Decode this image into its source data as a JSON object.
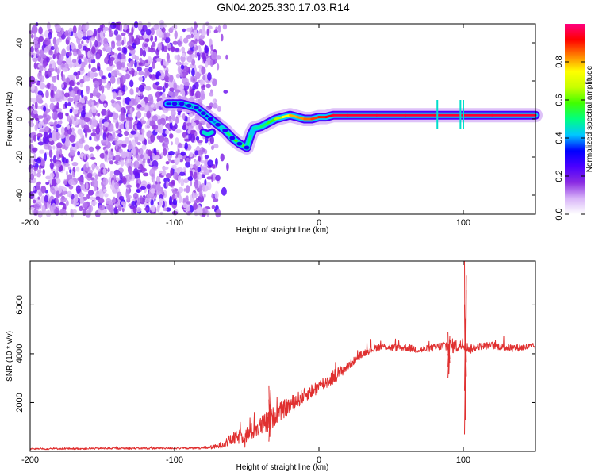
{
  "page_title": "GN04.2025.330.17.03.R14",
  "chart_data": [
    {
      "type": "heatmap",
      "title": "GN04.2025.330.17.03.R14",
      "xlabel": "Height of straight line (km)",
      "ylabel": "Frequency (Hz)",
      "xlim": [
        -200,
        150
      ],
      "ylim": [
        -50,
        50
      ],
      "xticks": [
        -200,
        -100,
        0,
        100
      ],
      "yticks": [
        -40,
        -20,
        0,
        20,
        40
      ],
      "colorbar": {
        "label": "Normalized spectral amplitude",
        "range": [
          0,
          1
        ],
        "ticks": [
          "0.0",
          "0.2",
          "0.4",
          "0.6",
          "0.8"
        ],
        "colormap": [
          "#ffffff",
          "#d8b4f8",
          "#8a2be2",
          "#4b00ff",
          "#0000ff",
          "#00c8ff",
          "#00ff80",
          "#40ff00",
          "#c8ff00",
          "#ffff00",
          "#ff8000",
          "#ff0000",
          "#ff0080"
        ]
      },
      "noise_region_x": [
        -200,
        -70
      ],
      "ridge": [
        [
          -105,
          8
        ],
        [
          -95,
          8
        ],
        [
          -85,
          6
        ],
        [
          -80,
          3
        ],
        [
          -75,
          0
        ],
        [
          -70,
          -3
        ],
        [
          -65,
          -6
        ],
        [
          -60,
          -10
        ],
        [
          -55,
          -13
        ],
        [
          -50,
          -15
        ],
        [
          -47,
          -8
        ],
        [
          -45,
          -5
        ],
        [
          -40,
          -4
        ],
        [
          -35,
          -2
        ],
        [
          -30,
          0
        ],
        [
          -25,
          1
        ],
        [
          -20,
          2
        ],
        [
          -15,
          1
        ],
        [
          -10,
          0
        ],
        [
          -5,
          0
        ],
        [
          0,
          1
        ],
        [
          5,
          1
        ],
        [
          10,
          2
        ],
        [
          20,
          2
        ],
        [
          40,
          2
        ],
        [
          60,
          2
        ],
        [
          80,
          2
        ],
        [
          100,
          2
        ],
        [
          120,
          2
        ],
        [
          150,
          2
        ]
      ],
      "ridge_strength": [
        0.3,
        0.3,
        0.25,
        0.3,
        0.35,
        0.4,
        0.5,
        0.55,
        0.6,
        0.6,
        0.4,
        0.45,
        0.5,
        0.55,
        0.6,
        0.7,
        0.8,
        0.8,
        0.85,
        0.85,
        0.9,
        0.9,
        0.95,
        0.95,
        0.95,
        0.95,
        0.95,
        0.95,
        0.95,
        0.95
      ],
      "side_branch": [
        [
          -80,
          -7
        ],
        [
          -77,
          -8
        ],
        [
          -74,
          -7
        ]
      ],
      "spikes_x": [
        82,
        98,
        100
      ]
    },
    {
      "type": "line",
      "xlabel": "Height of straight line (km)",
      "ylabel": "SNR (10 * v/v)",
      "xlim": [
        -200,
        150
      ],
      "ylim": [
        0,
        7800
      ],
      "xticks": [
        -200,
        -100,
        0,
        100
      ],
      "yticks": [
        2000,
        4000,
        6000
      ],
      "color": "#e03030",
      "series": [
        {
          "x": [
            -200,
            -150,
            -100,
            -80,
            -70,
            -60,
            -50,
            -40,
            -35,
            -30,
            -20,
            -10,
            0,
            10,
            20,
            25,
            30,
            35,
            40,
            45,
            50,
            60,
            70,
            80,
            90,
            95,
            100,
            105,
            110,
            120,
            130,
            140,
            150
          ],
          "y": [
            100,
            120,
            130,
            140,
            200,
            500,
            700,
            1050,
            1200,
            1500,
            1900,
            2300,
            2650,
            3050,
            3500,
            3750,
            4000,
            4150,
            4250,
            4300,
            4250,
            4250,
            4150,
            4250,
            4350,
            4300,
            4350,
            4200,
            4300,
            4350,
            4250,
            4250,
            4300
          ],
          "noise": [
            30,
            40,
            40,
            50,
            100,
            250,
            350,
            400,
            500,
            400,
            350,
            300,
            300,
            300,
            200,
            150,
            150,
            150,
            150,
            150,
            150,
            150,
            150,
            150,
            300,
            300,
            200,
            200,
            150,
            150,
            150,
            150,
            150
          ]
        }
      ],
      "events": [
        {
          "x": 101.5,
          "y_low": 700,
          "y_high": 7800
        },
        {
          "x": 90,
          "y_low": 3000,
          "y_high": 4900
        },
        {
          "x": -34,
          "y_low": 400,
          "y_high": 2700
        }
      ]
    }
  ]
}
